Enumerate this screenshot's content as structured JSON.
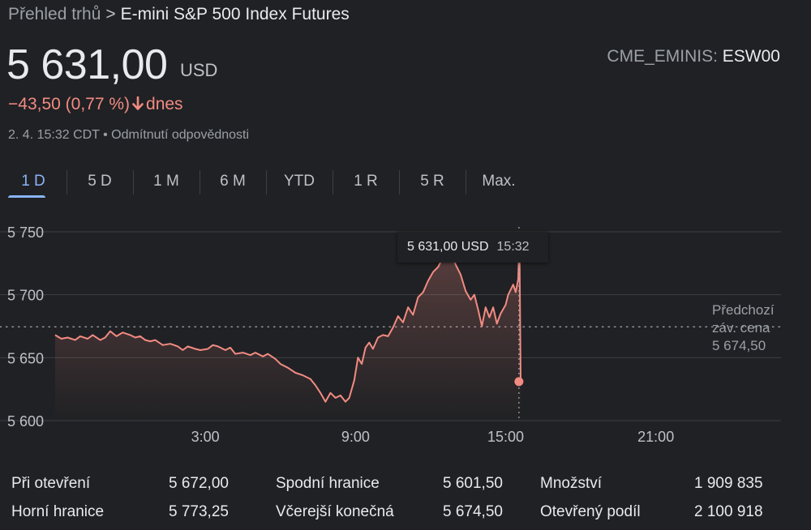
{
  "breadcrumb": {
    "parent": "Přehled trhů",
    "separator": ">",
    "current": "E-mini S&P 500 Index Futures"
  },
  "quote": {
    "price": "5 631,00",
    "currency": "USD",
    "exchange": "CME_EMINIS:",
    "symbol": "ESW00",
    "change": "−43,50 (0,77 %)",
    "change_period": "dnes",
    "change_color": "#f28b82",
    "timestamp": "2. 4. 15:32 CDT",
    "meta_separator": "•",
    "disclaimer": "Odmítnutí odpovědnosti"
  },
  "tabs": [
    {
      "label": "1 D",
      "active": true
    },
    {
      "label": "5 D",
      "active": false
    },
    {
      "label": "1 M",
      "active": false
    },
    {
      "label": "6 M",
      "active": false
    },
    {
      "label": "YTD",
      "active": false
    },
    {
      "label": "1 R",
      "active": false
    },
    {
      "label": "5 R",
      "active": false
    },
    {
      "label": "Max.",
      "active": false
    }
  ],
  "tooltip": {
    "price": "5 631,00 USD",
    "time": "15:32"
  },
  "previous_close": {
    "line1": "Předchozí",
    "line2": "záv. cena",
    "value": "5 674,50"
  },
  "stats": [
    {
      "label": "Při otevření",
      "value": "5 672,00"
    },
    {
      "label": "Horní hranice",
      "value": "5 773,25"
    },
    {
      "label": "Spodní hranice",
      "value": "5 601,50"
    },
    {
      "label": "Včerejší konečná",
      "value": "5 674,50"
    },
    {
      "label": "Množství",
      "value": "1 909 835"
    },
    {
      "label": "Otevřený podíl",
      "value": "2 100 918"
    }
  ],
  "colors": {
    "line": "#f28b82",
    "active_tab": "#8ab4f8",
    "background": "#202124"
  },
  "chart_data": {
    "type": "line",
    "ylim": [
      5600,
      5750
    ],
    "y_ticks": [
      {
        "value": 5750,
        "label": "5 750"
      },
      {
        "value": 5700,
        "label": "5 700"
      },
      {
        "value": 5650,
        "label": "5 650"
      },
      {
        "value": 5600,
        "label": "5 600"
      }
    ],
    "x_ticks": [
      {
        "value": 3,
        "label": "3:00"
      },
      {
        "value": 9,
        "label": "9:00"
      },
      {
        "value": 15,
        "label": "15:00"
      },
      {
        "value": 21,
        "label": "21:00"
      }
    ],
    "xlim": [
      -3,
      26
    ],
    "previous_close": 5674.5,
    "current_time": 15.53,
    "current_value": 5631,
    "series": [
      {
        "values": [
          [
            -3.0,
            5668
          ],
          [
            -2.75,
            5665
          ],
          [
            -2.5,
            5666
          ],
          [
            -2.2,
            5664
          ],
          [
            -2.0,
            5667
          ],
          [
            -1.7,
            5665
          ],
          [
            -1.5,
            5668
          ],
          [
            -1.2,
            5664
          ],
          [
            -1.0,
            5666
          ],
          [
            -0.8,
            5671
          ],
          [
            -0.55,
            5667
          ],
          [
            -0.3,
            5670
          ],
          [
            0.0,
            5668
          ],
          [
            0.2,
            5666
          ],
          [
            0.4,
            5667
          ],
          [
            0.6,
            5664
          ],
          [
            0.8,
            5663
          ],
          [
            1.0,
            5664
          ],
          [
            1.3,
            5660
          ],
          [
            1.6,
            5661
          ],
          [
            1.9,
            5659
          ],
          [
            2.1,
            5656
          ],
          [
            2.3,
            5659
          ],
          [
            2.6,
            5657
          ],
          [
            2.8,
            5656
          ],
          [
            3.1,
            5657
          ],
          [
            3.3,
            5660
          ],
          [
            3.5,
            5659
          ],
          [
            3.8,
            5656
          ],
          [
            4.0,
            5658
          ],
          [
            4.2,
            5653
          ],
          [
            4.5,
            5654
          ],
          [
            4.8,
            5652
          ],
          [
            5.0,
            5654
          ],
          [
            5.3,
            5651
          ],
          [
            5.5,
            5653
          ],
          [
            5.8,
            5649
          ],
          [
            6.0,
            5645
          ],
          [
            6.3,
            5642
          ],
          [
            6.6,
            5638
          ],
          [
            6.9,
            5636
          ],
          [
            7.2,
            5633
          ],
          [
            7.4,
            5628
          ],
          [
            7.6,
            5622
          ],
          [
            7.8,
            5615
          ],
          [
            8.0,
            5622
          ],
          [
            8.2,
            5618
          ],
          [
            8.4,
            5620
          ],
          [
            8.6,
            5615
          ],
          [
            8.75,
            5618
          ],
          [
            8.95,
            5632
          ],
          [
            9.1,
            5650
          ],
          [
            9.25,
            5645
          ],
          [
            9.4,
            5658
          ],
          [
            9.55,
            5662
          ],
          [
            9.7,
            5657
          ],
          [
            9.9,
            5666
          ],
          [
            10.1,
            5668
          ],
          [
            10.3,
            5667
          ],
          [
            10.5,
            5674
          ],
          [
            10.7,
            5683
          ],
          [
            10.9,
            5678
          ],
          [
            11.1,
            5690
          ],
          [
            11.3,
            5684
          ],
          [
            11.5,
            5698
          ],
          [
            11.7,
            5702
          ],
          [
            11.9,
            5711
          ],
          [
            12.1,
            5718
          ],
          [
            12.3,
            5722
          ],
          [
            12.5,
            5730
          ],
          [
            12.7,
            5735
          ],
          [
            12.85,
            5732
          ],
          [
            13.0,
            5724
          ],
          [
            13.2,
            5716
          ],
          [
            13.4,
            5703
          ],
          [
            13.6,
            5696
          ],
          [
            13.75,
            5700
          ],
          [
            13.9,
            5688
          ],
          [
            14.05,
            5675
          ],
          [
            14.2,
            5690
          ],
          [
            14.35,
            5682
          ],
          [
            14.5,
            5690
          ],
          [
            14.65,
            5677
          ],
          [
            14.8,
            5685
          ],
          [
            15.0,
            5692
          ],
          [
            15.1,
            5700
          ],
          [
            15.3,
            5708
          ],
          [
            15.4,
            5702
          ],
          [
            15.5,
            5712
          ],
          [
            15.55,
            5742
          ],
          [
            15.6,
            5631
          ]
        ]
      }
    ]
  }
}
